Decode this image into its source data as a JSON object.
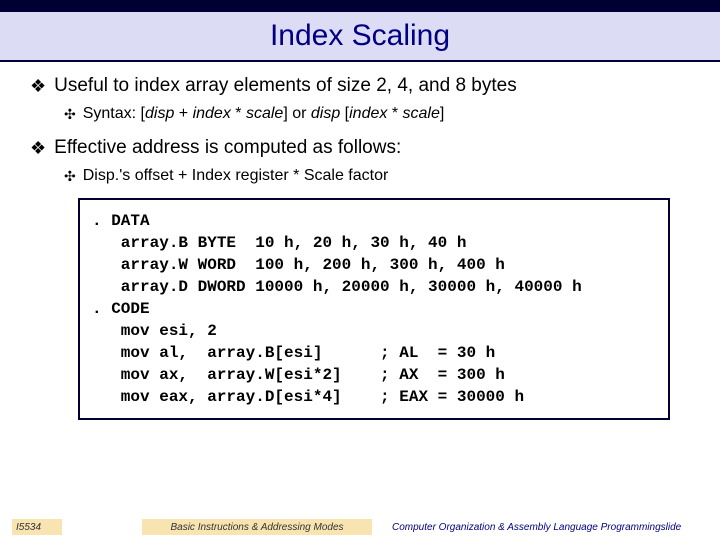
{
  "title": "Index Scaling",
  "bullet1": "Useful to index array elements of size 2, 4, and 8 bytes",
  "sub1_prefix": "Syntax: [",
  "sub1_disp": "disp",
  "sub1_mid1": " + ",
  "sub1_index": "index",
  "sub1_mid2": " * ",
  "sub1_scale": "scale",
  "sub1_mid3": "] or ",
  "sub1_disp2": "disp",
  "sub1_mid4": " [",
  "sub1_index2": "index",
  "sub1_mid5": " * ",
  "sub1_scale2": "scale",
  "sub1_end": "]",
  "bullet2": "Effective address is computed as follows:",
  "sub2": "Disp.'s offset + Index register * Scale factor",
  "code": ". DATA\n   array.B BYTE  10 h, 20 h, 30 h, 40 h\n   array.W WORD  100 h, 200 h, 300 h, 400 h\n   array.D DWORD 10000 h, 20000 h, 30000 h, 40000 h\n. CODE\n   mov esi, 2\n   mov al,  array.B[esi]      ; AL  = 30 h\n   mov ax,  array.W[esi*2]    ; AX  = 300 h\n   mov eax, array.D[esi*4]    ; EAX = 30000 h",
  "footer_left": "I5534",
  "footer_mid": "Basic Instructions & Addressing Modes",
  "footer_right": "Computer Organization & Assembly Language Programmingslide",
  "colors": {
    "title_bg": "#dcdcf5",
    "dark_border": "#000033",
    "title_color": "#000080",
    "footer_bg": "#f8e4b0"
  }
}
